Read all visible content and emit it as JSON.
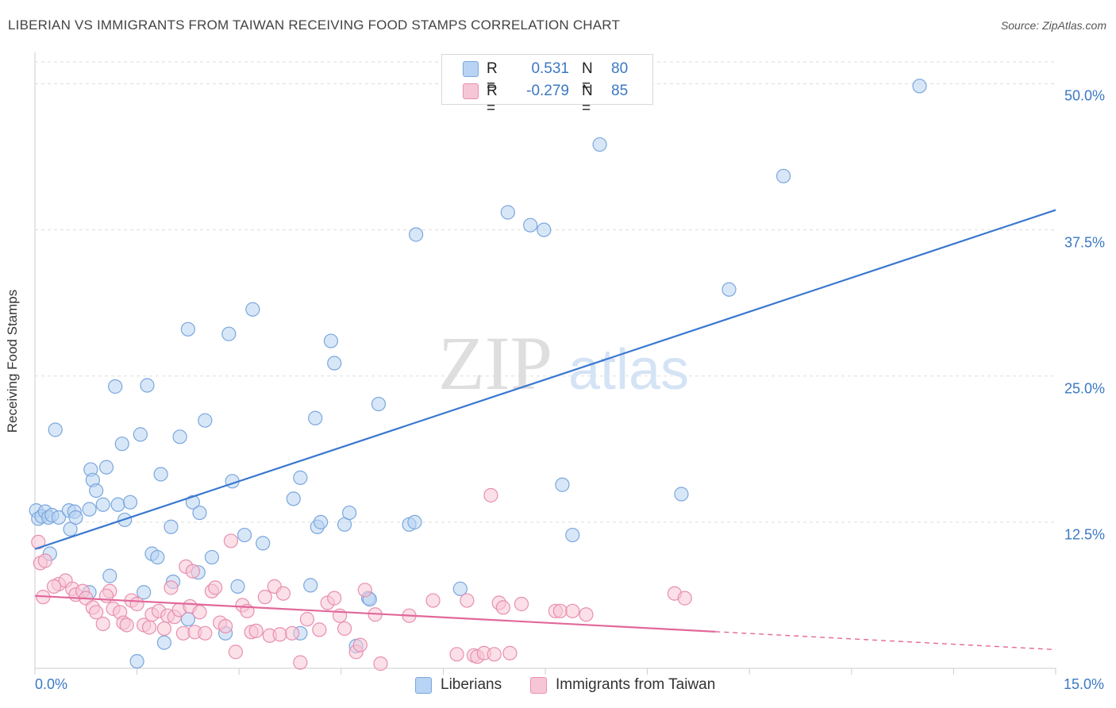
{
  "title": "LIBERIAN VS IMMIGRANTS FROM TAIWAN RECEIVING FOOD STAMPS CORRELATION CHART",
  "source": "Source: ZipAtlas.com",
  "watermark": {
    "zip": "ZIP",
    "atlas": "atlas"
  },
  "colors": {
    "blue_fill": "#b8d3f3",
    "blue_stroke": "#7aa7dd",
    "blue_line": "#3a78d0",
    "pink_fill": "#f7c6d6",
    "pink_stroke": "#e88fb0",
    "pink_line": "#e2689a",
    "grid": "#dddddd",
    "tick_text": "#3b78c4"
  },
  "legend": {
    "rows": [
      {
        "r_label": "R =",
        "r_value": "0.531",
        "n_label": "N =",
        "n_value": "80"
      },
      {
        "r_label": "R =",
        "r_value": "-0.279",
        "n_label": "N =",
        "n_value": "85"
      }
    ]
  },
  "chart_data": {
    "type": "scatter",
    "title": "LIBERIAN VS IMMIGRANTS FROM TAIWAN RECEIVING FOOD STAMPS CORRELATION CHART",
    "xlabel": "",
    "ylabel": "Receiving Food Stamps",
    "xlim": [
      0,
      15
    ],
    "ylim": [
      0,
      52
    ],
    "x_tick_labels": [
      "0.0%",
      "15.0%"
    ],
    "y_ticks": [
      {
        "value": 12.5,
        "label": "12.5%"
      },
      {
        "value": 25.0,
        "label": "25.0%"
      },
      {
        "value": 37.5,
        "label": "37.5%"
      },
      {
        "value": 50.0,
        "label": "50.0%"
      }
    ],
    "legend_position": "top-center",
    "series": [
      {
        "name": "Liberians",
        "r": 0.531,
        "n": 80,
        "trend": {
          "x": [
            0,
            15
          ],
          "y": [
            10.2,
            39.2
          ],
          "dashed_after": null
        },
        "points": [
          [
            0.02,
            13.5
          ],
          [
            0.05,
            12.8
          ],
          [
            0.1,
            13.0
          ],
          [
            0.15,
            13.4
          ],
          [
            0.2,
            12.9
          ],
          [
            0.25,
            13.1
          ],
          [
            0.35,
            12.9
          ],
          [
            0.22,
            9.8
          ],
          [
            0.3,
            20.4
          ],
          [
            0.5,
            13.5
          ],
          [
            0.52,
            11.9
          ],
          [
            0.58,
            13.4
          ],
          [
            0.6,
            12.9
          ],
          [
            0.8,
            13.6
          ],
          [
            0.8,
            6.5
          ],
          [
            0.82,
            17.0
          ],
          [
            0.85,
            16.1
          ],
          [
            0.9,
            15.2
          ],
          [
            1.0,
            14.0
          ],
          [
            1.05,
            17.2
          ],
          [
            1.1,
            7.9
          ],
          [
            1.18,
            24.1
          ],
          [
            1.22,
            14.0
          ],
          [
            1.28,
            19.2
          ],
          [
            1.32,
            12.7
          ],
          [
            1.4,
            14.2
          ],
          [
            1.5,
            0.6
          ],
          [
            1.55,
            20.0
          ],
          [
            1.6,
            6.5
          ],
          [
            1.65,
            24.2
          ],
          [
            1.72,
            9.8
          ],
          [
            1.8,
            9.5
          ],
          [
            1.85,
            16.6
          ],
          [
            1.9,
            2.2
          ],
          [
            2.0,
            12.1
          ],
          [
            2.03,
            7.4
          ],
          [
            2.13,
            19.8
          ],
          [
            2.25,
            4.2
          ],
          [
            2.25,
            29.0
          ],
          [
            2.32,
            14.2
          ],
          [
            2.4,
            8.2
          ],
          [
            2.42,
            13.3
          ],
          [
            2.5,
            21.2
          ],
          [
            2.6,
            9.5
          ],
          [
            2.8,
            3.0
          ],
          [
            2.85,
            28.6
          ],
          [
            2.9,
            16.0
          ],
          [
            2.98,
            7.0
          ],
          [
            3.08,
            11.4
          ],
          [
            3.2,
            30.7
          ],
          [
            3.35,
            10.7
          ],
          [
            3.8,
            14.5
          ],
          [
            3.9,
            16.3
          ],
          [
            3.9,
            3.0
          ],
          [
            4.05,
            7.1
          ],
          [
            4.12,
            21.4
          ],
          [
            4.15,
            12.1
          ],
          [
            4.2,
            12.5
          ],
          [
            4.35,
            28.0
          ],
          [
            4.4,
            26.1
          ],
          [
            4.55,
            12.3
          ],
          [
            4.62,
            13.3
          ],
          [
            4.72,
            1.9
          ],
          [
            4.9,
            6.0
          ],
          [
            4.92,
            5.9
          ],
          [
            5.05,
            22.6
          ],
          [
            5.5,
            12.3
          ],
          [
            5.58,
            12.5
          ],
          [
            5.6,
            37.1
          ],
          [
            6.25,
            6.8
          ],
          [
            6.95,
            39.0
          ],
          [
            7.28,
            37.9
          ],
          [
            7.48,
            37.5
          ],
          [
            7.75,
            15.7
          ],
          [
            7.9,
            11.4
          ],
          [
            8.3,
            44.8
          ],
          [
            9.5,
            14.9
          ],
          [
            10.2,
            32.4
          ],
          [
            11.0,
            42.1
          ],
          [
            13.0,
            49.8
          ]
        ]
      },
      {
        "name": "Immigrants from Taiwan",
        "r": -0.279,
        "n": 85,
        "trend": {
          "x": [
            0,
            15
          ],
          "y": [
            6.2,
            1.6
          ],
          "dashed_after": 10.0
        },
        "points": [
          [
            0.05,
            10.8
          ],
          [
            0.08,
            9.0
          ],
          [
            0.15,
            9.2
          ],
          [
            0.35,
            7.2
          ],
          [
            0.45,
            7.5
          ],
          [
            0.55,
            6.8
          ],
          [
            0.6,
            6.3
          ],
          [
            0.7,
            6.6
          ],
          [
            0.75,
            6.0
          ],
          [
            0.85,
            5.2
          ],
          [
            0.9,
            4.8
          ],
          [
            1.0,
            3.8
          ],
          [
            1.1,
            6.6
          ],
          [
            1.15,
            5.1
          ],
          [
            1.25,
            4.8
          ],
          [
            1.3,
            3.9
          ],
          [
            1.35,
            3.7
          ],
          [
            1.42,
            5.8
          ],
          [
            1.5,
            5.5
          ],
          [
            1.6,
            3.7
          ],
          [
            1.68,
            3.5
          ],
          [
            1.72,
            4.6
          ],
          [
            1.82,
            4.9
          ],
          [
            1.9,
            3.4
          ],
          [
            1.95,
            4.5
          ],
          [
            2.0,
            6.9
          ],
          [
            2.05,
            4.4
          ],
          [
            2.12,
            5.0
          ],
          [
            2.18,
            3.0
          ],
          [
            2.22,
            8.7
          ],
          [
            2.28,
            5.3
          ],
          [
            2.35,
            3.1
          ],
          [
            2.42,
            4.8
          ],
          [
            2.5,
            3.0
          ],
          [
            2.6,
            6.6
          ],
          [
            2.65,
            6.9
          ],
          [
            2.72,
            3.9
          ],
          [
            2.8,
            3.6
          ],
          [
            2.88,
            10.9
          ],
          [
            2.95,
            1.4
          ],
          [
            3.05,
            5.4
          ],
          [
            3.12,
            4.9
          ],
          [
            3.18,
            3.1
          ],
          [
            3.25,
            3.2
          ],
          [
            3.38,
            6.1
          ],
          [
            3.45,
            2.8
          ],
          [
            3.52,
            7.0
          ],
          [
            3.6,
            2.9
          ],
          [
            3.65,
            6.4
          ],
          [
            3.78,
            3.0
          ],
          [
            3.9,
            0.5
          ],
          [
            4.0,
            4.2
          ],
          [
            4.18,
            3.3
          ],
          [
            4.3,
            5.6
          ],
          [
            4.4,
            6.0
          ],
          [
            4.48,
            4.5
          ],
          [
            4.55,
            3.4
          ],
          [
            4.72,
            1.4
          ],
          [
            4.78,
            2.0
          ],
          [
            4.85,
            6.7
          ],
          [
            5.0,
            4.6
          ],
          [
            5.08,
            0.4
          ],
          [
            5.5,
            4.5
          ],
          [
            5.85,
            5.8
          ],
          [
            6.2,
            1.2
          ],
          [
            6.35,
            5.8
          ],
          [
            6.45,
            1.1
          ],
          [
            6.5,
            1.0
          ],
          [
            6.6,
            1.3
          ],
          [
            6.7,
            14.8
          ],
          [
            6.75,
            1.2
          ],
          [
            6.82,
            5.6
          ],
          [
            6.88,
            5.2
          ],
          [
            6.98,
            1.3
          ],
          [
            7.15,
            5.5
          ],
          [
            7.65,
            4.9
          ],
          [
            7.72,
            4.9
          ],
          [
            7.9,
            4.9
          ],
          [
            8.1,
            4.6
          ],
          [
            9.4,
            6.4
          ],
          [
            9.55,
            6.0
          ],
          [
            0.12,
            6.1
          ],
          [
            0.28,
            7.0
          ],
          [
            1.05,
            6.2
          ],
          [
            2.32,
            8.3
          ]
        ]
      }
    ]
  },
  "bottom_legend": [
    "Liberians",
    "Immigrants from Taiwan"
  ]
}
